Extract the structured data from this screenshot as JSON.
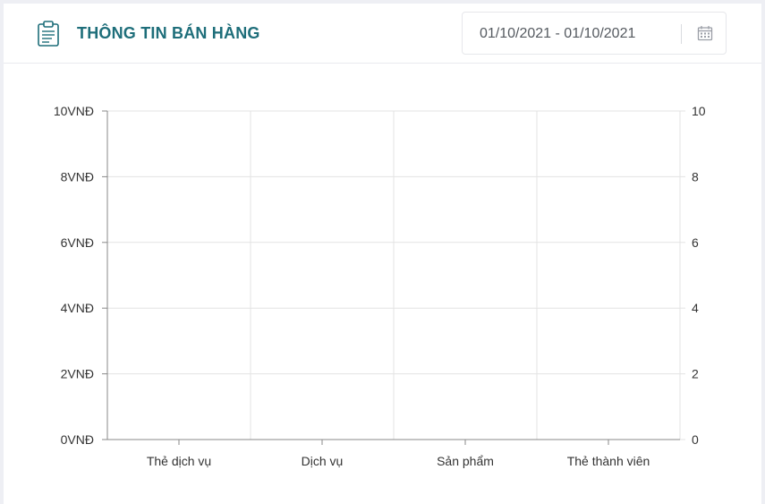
{
  "header": {
    "title": "THÔNG TIN BÁN HÀNG",
    "icon": "clipboard-list-icon",
    "title_color": "#1e6e7a"
  },
  "date_range": {
    "value": "01/10/2021 - 01/10/2021",
    "icon": "calendar-icon"
  },
  "chart_data": {
    "type": "bar",
    "title": "",
    "xlabel": "",
    "ylabel": "",
    "categories": [
      "Thẻ dịch vụ",
      "Dịch vụ",
      "Sản phẩm",
      "Thẻ thành viên"
    ],
    "series": [
      {
        "axis": "left",
        "values": [
          0,
          0,
          0,
          0
        ]
      },
      {
        "axis": "right",
        "values": [
          0,
          0,
          0,
          0
        ]
      }
    ],
    "y_left": {
      "ylim": [
        0,
        10
      ],
      "ticks": [
        0,
        2,
        4,
        6,
        8,
        10
      ],
      "tick_labels": [
        "0VNĐ",
        "2VNĐ",
        "4VNĐ",
        "6VNĐ",
        "8VNĐ",
        "10VNĐ"
      ]
    },
    "y_right": {
      "ylim": [
        0,
        10
      ],
      "ticks": [
        0,
        2,
        4,
        6,
        8,
        10
      ],
      "tick_labels": [
        "0",
        "2",
        "4",
        "6",
        "8",
        "10"
      ]
    },
    "grid": true,
    "legend": "none"
  }
}
